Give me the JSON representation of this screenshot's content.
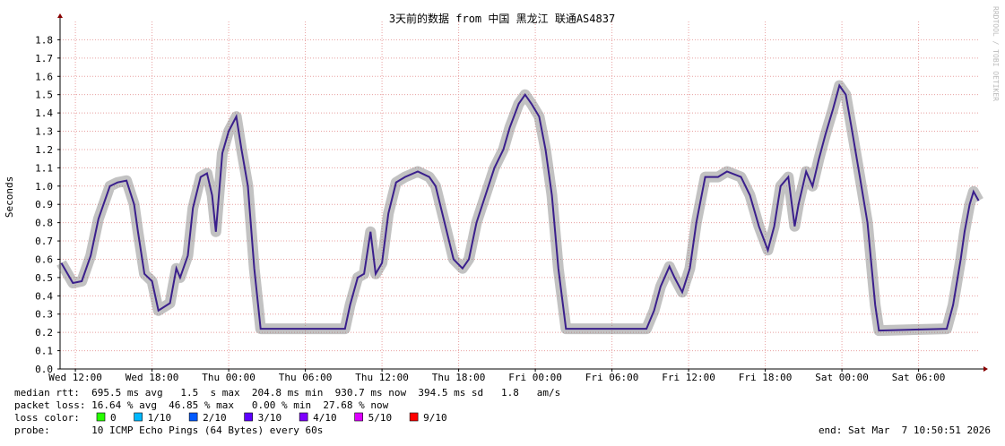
{
  "chart_data": {
    "type": "line",
    "title": "3天前的数据 from 中国 黑龙江 联通AS4837",
    "y_label": "Seconds",
    "watermark": "RRDTOOL / TOBI OETIKER",
    "xlim": [
      -1.2,
      70.8
    ],
    "ylim": [
      0,
      1.9
    ],
    "yticks": [
      {
        "value": 0,
        "label": "0.0"
      },
      0.1,
      0.2,
      0.3,
      0.4,
      0.5,
      0.6,
      0.7,
      0.8,
      0.9,
      {
        "value": 1,
        "label": "1.0"
      },
      1.1,
      1.2,
      1.3,
      1.4,
      1.5,
      1.6,
      1.7,
      1.8
    ],
    "xticks": [
      {
        "value": 0,
        "label": "Wed 12:00"
      },
      {
        "value": 6,
        "label": "Wed 18:00"
      },
      {
        "value": 12,
        "label": "Thu 00:00"
      },
      {
        "value": 18,
        "label": "Thu 06:00"
      },
      {
        "value": 24,
        "label": "Thu 12:00"
      },
      {
        "value": 30,
        "label": "Thu 18:00"
      },
      {
        "value": 36,
        "label": "Fri 00:00"
      },
      {
        "value": 42,
        "label": "Fri 06:00"
      },
      {
        "value": 48,
        "label": "Fri 12:00"
      },
      {
        "value": 54,
        "label": "Fri 18:00"
      },
      {
        "value": 60,
        "label": "Sat 00:00"
      },
      {
        "value": 66,
        "label": "Sat 06:00"
      }
    ],
    "grid": true,
    "series": [
      {
        "name": "median rtt",
        "color": "#3a1f8c",
        "x": [
          -1.1,
          -0.2,
          0.5,
          1.2,
          1.8,
          2.3,
          2.7,
          3.3,
          4.0,
          4.6,
          4.9,
          5.4,
          6.0,
          6.5,
          7.4,
          7.9,
          8.2,
          8.8,
          9.2,
          9.8,
          10.3,
          10.7,
          11.0,
          11.5,
          12.0,
          12.6,
          13.0,
          13.5,
          14.0,
          14.5,
          21.1,
          21.5,
          22.1,
          22.6,
          23.1,
          23.5,
          24.0,
          24.5,
          25.1,
          25.8,
          26.8,
          27.7,
          28.2,
          28.9,
          29.6,
          30.3,
          30.8,
          31.4,
          32.1,
          32.8,
          33.5,
          34.0,
          34.7,
          35.2,
          35.7,
          36.3,
          36.8,
          37.3,
          37.8,
          38.4,
          44.7,
          45.3,
          45.8,
          46.5,
          46.9,
          47.5,
          48.1,
          48.6,
          49.3,
          50.3,
          51.0,
          52.1,
          52.8,
          53.5,
          54.2,
          54.7,
          55.2,
          55.8,
          56.3,
          56.6,
          57.2,
          57.7,
          58.2,
          58.7,
          59.3,
          59.8,
          60.3,
          60.8,
          61.4,
          62.0,
          62.6,
          62.9,
          68.2,
          68.7,
          69.3,
          69.6,
          70.0,
          70.3,
          70.7
        ],
        "values": [
          0.58,
          0.47,
          0.48,
          0.62,
          0.82,
          0.92,
          1.0,
          1.02,
          1.03,
          0.9,
          0.75,
          0.52,
          0.48,
          0.32,
          0.36,
          0.55,
          0.5,
          0.62,
          0.88,
          1.05,
          1.07,
          0.95,
          0.75,
          1.18,
          1.3,
          1.38,
          1.2,
          1.0,
          0.55,
          0.22,
          0.22,
          0.35,
          0.5,
          0.52,
          0.75,
          0.52,
          0.58,
          0.85,
          1.02,
          1.05,
          1.08,
          1.05,
          1.0,
          0.8,
          0.6,
          0.55,
          0.6,
          0.8,
          0.95,
          1.1,
          1.2,
          1.32,
          1.45,
          1.5,
          1.45,
          1.38,
          1.2,
          0.95,
          0.55,
          0.22,
          0.22,
          0.32,
          0.45,
          0.56,
          0.5,
          0.42,
          0.55,
          0.8,
          1.05,
          1.05,
          1.08,
          1.05,
          0.95,
          0.78,
          0.65,
          0.78,
          1.0,
          1.05,
          0.78,
          0.9,
          1.08,
          1.0,
          1.15,
          1.28,
          1.42,
          1.55,
          1.5,
          1.3,
          1.05,
          0.8,
          0.35,
          0.21,
          0.22,
          0.35,
          0.6,
          0.75,
          0.9,
          0.97,
          0.92
        ]
      }
    ],
    "stats": {
      "median": "median rtt:  695.5 ms avg   1.5  s max  204.8 ms min  930.7 ms now  394.5 ms sd   1.8   am/s",
      "loss": "packet loss: 16.64 % avg  46.85 % max   0.00 % min  27.68 % now"
    },
    "loss_legend": {
      "label": "loss color:",
      "items": [
        {
          "name": "0",
          "color": "#26ff00"
        },
        {
          "name": "1/10",
          "color": "#00b8ff"
        },
        {
          "name": "2/10",
          "color": "#0059ff"
        },
        {
          "name": "3/10",
          "color": "#5e00ff"
        },
        {
          "name": "4/10",
          "color": "#7e00ff"
        },
        {
          "name": "5/10",
          "color": "#dd00ff"
        },
        {
          "name": "9/10",
          "color": "#ff0000"
        }
      ]
    },
    "probe": "probe:       10 ICMP Echo Pings (64 Bytes) every 60s",
    "end": "end: Sat Mar  7 10:50:51 2026"
  }
}
